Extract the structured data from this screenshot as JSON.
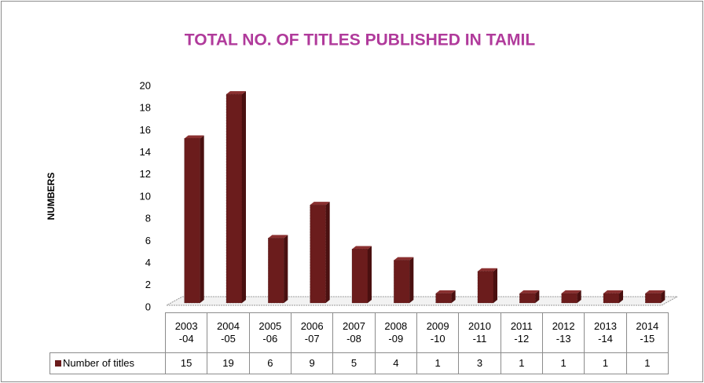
{
  "chart_data": {
    "type": "bar",
    "title": "TOTAL NO. OF TITLES PUBLISHED IN TAMIL",
    "y_label": "NUMBERS",
    "categories": [
      "2003\n-04",
      "2004\n-05",
      "2005\n-06",
      "2006\n-07",
      "2007\n-08",
      "2008\n-09",
      "2009\n-10",
      "2010\n-11",
      "2011\n-12",
      "2012\n-13",
      "2013\n-14",
      "2014\n-15"
    ],
    "series": [
      {
        "name": "Number of titles",
        "color": "#6b1c1c",
        "values": [
          15,
          19,
          6,
          9,
          5,
          4,
          1,
          3,
          1,
          1,
          1,
          1
        ]
      }
    ],
    "ylim": [
      0,
      20
    ],
    "yticks": [
      0,
      2,
      4,
      6,
      8,
      10,
      12,
      14,
      16,
      18,
      20
    ]
  }
}
